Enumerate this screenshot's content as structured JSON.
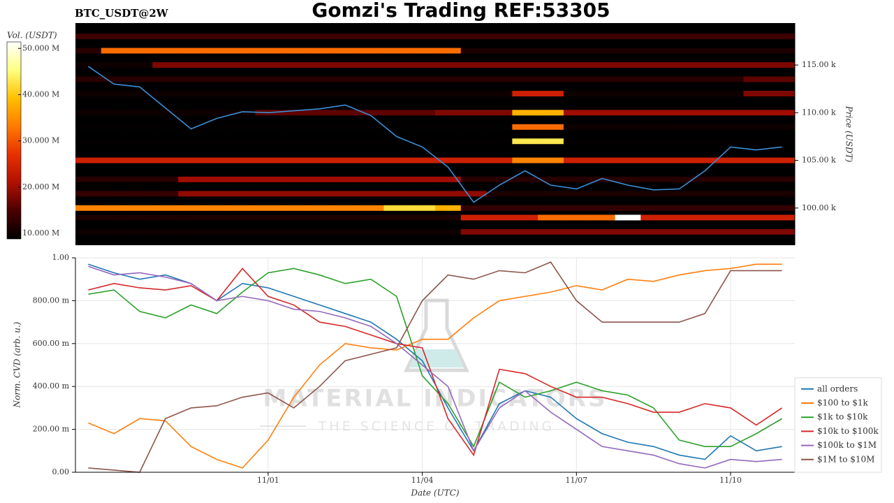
{
  "header": {
    "title": "Gomzi's Trading REF:53305"
  },
  "watermark": {
    "brand": "MATERIAL INDICATORS",
    "tagline": "THE SCIENCE OF TRADING"
  },
  "chart_data": [
    {
      "type": "heatmap",
      "title": "BTC_USDT@2W",
      "ylabel": "Price (USDT)",
      "ylim": [
        96100,
        119400
      ],
      "yticks": [
        {
          "value": 100000,
          "label": "100.00 k"
        },
        {
          "value": 105000,
          "label": "105.00 k"
        },
        {
          "value": 110000,
          "label": "110.00 k"
        },
        {
          "value": 115000,
          "label": "115.00 k"
        }
      ],
      "colorbar_label": "Vol. (USDT)",
      "clim": [
        8800000,
        51400000
      ],
      "cticks": [
        {
          "value": 10000000,
          "label": "10.000 M"
        },
        {
          "value": 20000000,
          "label": "20.000 M"
        },
        {
          "value": 30000000,
          "label": "30.000 M"
        },
        {
          "value": 40000000,
          "label": "40.000 M"
        },
        {
          "value": 50000000,
          "label": "50.000 M"
        }
      ],
      "colormap": [
        "#000000",
        "#4a0000",
        "#b01000",
        "#e83000",
        "#ff7a00",
        "#ffc000",
        "#ffff80",
        "#ffffff"
      ],
      "price_levels": [
        118000,
        116500,
        115000,
        113500,
        112000,
        110000,
        108500,
        107000,
        105000,
        103000,
        101500,
        100000,
        99000,
        97500
      ],
      "volume": [
        [
          14000000.0,
          14000000.0,
          14000000.0,
          14000000.0,
          14000000.0,
          14000000.0,
          14000000.0,
          14000000.0,
          14000000.0,
          14000000.0,
          14000000.0,
          14000000.0,
          14000000.0,
          14000000.0,
          14000000.0,
          14000000.0,
          14000000.0,
          14000000.0,
          14000000.0,
          14000000.0,
          14000000.0,
          14000000.0,
          14000000.0,
          14000000.0,
          14000000.0,
          14000000.0,
          14000000.0,
          14000000.0
        ],
        [
          12000000.0,
          32000000.0,
          32000000.0,
          32000000.0,
          32000000.0,
          32000000.0,
          32000000.0,
          32000000.0,
          32000000.0,
          32000000.0,
          32000000.0,
          32000000.0,
          32000000.0,
          32000000.0,
          32000000.0,
          11000000.0,
          11000000.0,
          11000000.0,
          11000000.0,
          11000000.0,
          11000000.0,
          11000000.0,
          11000000.0,
          11000000.0,
          11000000.0,
          11000000.0,
          11000000.0,
          11000000.0
        ],
        [
          10000000.0,
          10000000.0,
          10000000.0,
          18000000.0,
          18000000.0,
          18000000.0,
          18000000.0,
          18000000.0,
          18000000.0,
          18000000.0,
          18000000.0,
          18000000.0,
          18000000.0,
          18000000.0,
          18000000.0,
          18000000.0,
          18000000.0,
          18000000.0,
          18000000.0,
          18000000.0,
          18000000.0,
          18000000.0,
          18000000.0,
          18000000.0,
          18000000.0,
          18000000.0,
          18000000.0,
          18000000.0
        ],
        [
          12000000.0,
          12000000.0,
          12000000.0,
          12000000.0,
          12000000.0,
          12000000.0,
          12000000.0,
          12000000.0,
          12000000.0,
          12000000.0,
          12000000.0,
          12000000.0,
          12000000.0,
          12000000.0,
          12000000.0,
          12000000.0,
          12000000.0,
          12000000.0,
          12000000.0,
          12000000.0,
          12000000.0,
          12000000.0,
          12000000.0,
          12000000.0,
          12000000.0,
          12000000.0,
          16000000.0,
          16000000.0
        ],
        [
          10000000.0,
          10000000.0,
          10000000.0,
          10000000.0,
          10000000.0,
          10000000.0,
          10000000.0,
          10000000.0,
          10000000.0,
          10000000.0,
          10000000.0,
          10000000.0,
          10000000.0,
          10000000.0,
          10000000.0,
          10000000.0,
          10000000.0,
          24000000.0,
          24000000.0,
          10000000.0,
          10000000.0,
          10000000.0,
          10000000.0,
          10000000.0,
          10000000.0,
          10000000.0,
          18000000.0,
          18000000.0
        ],
        [
          10000000.0,
          10000000.0,
          10000000.0,
          10000000.0,
          10000000.0,
          10000000.0,
          10000000.0,
          16000000.0,
          16000000.0,
          16000000.0,
          16000000.0,
          16000000.0,
          16000000.0,
          16000000.0,
          18000000.0,
          18000000.0,
          18000000.0,
          38000000.0,
          38000000.0,
          20000000.0,
          20000000.0,
          20000000.0,
          20000000.0,
          20000000.0,
          20000000.0,
          20000000.0,
          20000000.0,
          20000000.0
        ],
        [
          9000000.0,
          9000000.0,
          9000000.0,
          9000000.0,
          9000000.0,
          9000000.0,
          9000000.0,
          9000000.0,
          9000000.0,
          9000000.0,
          9000000.0,
          9000000.0,
          9000000.0,
          9000000.0,
          9000000.0,
          9000000.0,
          9000000.0,
          32000000.0,
          32000000.0,
          10000000.0,
          10000000.0,
          10000000.0,
          10000000.0,
          10000000.0,
          10000000.0,
          10000000.0,
          10000000.0,
          10000000.0
        ],
        [
          9000000.0,
          9000000.0,
          9000000.0,
          9000000.0,
          9000000.0,
          9000000.0,
          9000000.0,
          9000000.0,
          9000000.0,
          9000000.0,
          9000000.0,
          9000000.0,
          9000000.0,
          9000000.0,
          9000000.0,
          9000000.0,
          9000000.0,
          43000000.0,
          43000000.0,
          9000000.0,
          9000000.0,
          9000000.0,
          9000000.0,
          9000000.0,
          9000000.0,
          9000000.0,
          9000000.0,
          9000000.0
        ],
        [
          24000000.0,
          24000000.0,
          24000000.0,
          24000000.0,
          24000000.0,
          24000000.0,
          24000000.0,
          24000000.0,
          24000000.0,
          24000000.0,
          24000000.0,
          24000000.0,
          24000000.0,
          24000000.0,
          24000000.0,
          24000000.0,
          24000000.0,
          34000000.0,
          34000000.0,
          24000000.0,
          24000000.0,
          24000000.0,
          24000000.0,
          24000000.0,
          24000000.0,
          24000000.0,
          24000000.0,
          24000000.0
        ],
        [
          12000000.0,
          12000000.0,
          12000000.0,
          12000000.0,
          20000000.0,
          20000000.0,
          20000000.0,
          20000000.0,
          20000000.0,
          20000000.0,
          20000000.0,
          20000000.0,
          20000000.0,
          20000000.0,
          20000000.0,
          12000000.0,
          12000000.0,
          12000000.0,
          12000000.0,
          12000000.0,
          12000000.0,
          12000000.0,
          12000000.0,
          12000000.0,
          12000000.0,
          12000000.0,
          12000000.0,
          12000000.0
        ],
        [
          13000000.0,
          13000000.0,
          13000000.0,
          13000000.0,
          19000000.0,
          19000000.0,
          19000000.0,
          19000000.0,
          19000000.0,
          19000000.0,
          19000000.0,
          19000000.0,
          19000000.0,
          19000000.0,
          19000000.0,
          19000000.0,
          11000000.0,
          11000000.0,
          11000000.0,
          11000000.0,
          11000000.0,
          11000000.0,
          11000000.0,
          11000000.0,
          11000000.0,
          11000000.0,
          11000000.0,
          11000000.0
        ],
        [
          34000000.0,
          34000000.0,
          34000000.0,
          34000000.0,
          34000000.0,
          34000000.0,
          34000000.0,
          34000000.0,
          34000000.0,
          34000000.0,
          34000000.0,
          34000000.0,
          42000000.0,
          42000000.0,
          38000000.0,
          13000000.0,
          13000000.0,
          13000000.0,
          13000000.0,
          13000000.0,
          13000000.0,
          13000000.0,
          13000000.0,
          13000000.0,
          13000000.0,
          13000000.0,
          13000000.0,
          13000000.0
        ],
        [
          11000000.0,
          11000000.0,
          11000000.0,
          11000000.0,
          11000000.0,
          11000000.0,
          11000000.0,
          11000000.0,
          11000000.0,
          11000000.0,
          11000000.0,
          11000000.0,
          11000000.0,
          11000000.0,
          11000000.0,
          24000000.0,
          24000000.0,
          24000000.0,
          32000000.0,
          32000000.0,
          32000000.0,
          52000000.0,
          24000000.0,
          24000000.0,
          24000000.0,
          24000000.0,
          24000000.0,
          24000000.0
        ],
        [
          10000000.0,
          10000000.0,
          10000000.0,
          10000000.0,
          10000000.0,
          10000000.0,
          10000000.0,
          10000000.0,
          10000000.0,
          10000000.0,
          10000000.0,
          10000000.0,
          10000000.0,
          10000000.0,
          10000000.0,
          18000000.0,
          18000000.0,
          18000000.0,
          18000000.0,
          18000000.0,
          18000000.0,
          18000000.0,
          18000000.0,
          18000000.0,
          18000000.0,
          18000000.0,
          18000000.0,
          18000000.0
        ]
      ],
      "series": [
        {
          "color": "#3b8fd6",
          "values": [
            114850,
            113000,
            112700,
            110500,
            108300,
            109400,
            110100,
            110000,
            110200,
            110400,
            110800,
            109700,
            107500,
            106400,
            104300,
            100600,
            102400,
            103900,
            102400,
            102000,
            103100,
            102400,
            101900,
            102000,
            103900,
            106400,
            106100,
            106400
          ]
        }
      ]
    },
    {
      "type": "line",
      "xlabel": "Date (UTC)",
      "ylabel": "Norm. CVD (arb. u.)",
      "x": [
        null,
        null,
        null,
        null,
        null,
        null,
        null,
        "11/01",
        null,
        null,
        null,
        null,
        null,
        "11/04",
        null,
        null,
        null,
        null,
        null,
        "11/07",
        null,
        null,
        null,
        null,
        null,
        "11/10",
        null,
        null
      ],
      "ylim": [
        0,
        1
      ],
      "yticks": [
        {
          "value": 0,
          "label": "0.00"
        },
        {
          "value": 0.2,
          "label": "200.00 m"
        },
        {
          "value": 0.4,
          "label": "400.00 m"
        },
        {
          "value": 0.6,
          "label": "600.00 m"
        },
        {
          "value": 0.8,
          "label": "800.00 m"
        },
        {
          "value": 1,
          "label": "1.00"
        }
      ],
      "grid": true,
      "legend": "right",
      "series": [
        {
          "name": "all orders",
          "color": "#1f77b4",
          "values": [
            0.97,
            0.93,
            0.9,
            0.92,
            0.88,
            0.8,
            0.88,
            0.86,
            0.82,
            0.78,
            0.74,
            0.7,
            0.62,
            0.52,
            0.3,
            0.1,
            0.32,
            0.38,
            0.35,
            0.25,
            0.18,
            0.14,
            0.12,
            0.08,
            0.06,
            0.17,
            0.1,
            0.12
          ]
        },
        {
          "name": "$100 to $1k",
          "color": "#ff7f0e",
          "values": [
            0.23,
            0.18,
            0.25,
            0.24,
            0.12,
            0.06,
            0.02,
            0.15,
            0.35,
            0.5,
            0.6,
            0.58,
            0.57,
            0.62,
            0.62,
            0.72,
            0.8,
            0.82,
            0.84,
            0.87,
            0.85,
            0.9,
            0.89,
            0.92,
            0.94,
            0.95,
            0.97,
            0.97
          ]
        },
        {
          "name": "$1k to $10k",
          "color": "#2ca02c",
          "values": [
            0.83,
            0.85,
            0.75,
            0.72,
            0.78,
            0.74,
            0.84,
            0.93,
            0.95,
            0.92,
            0.88,
            0.9,
            0.82,
            0.45,
            0.32,
            0.12,
            0.42,
            0.35,
            0.38,
            0.42,
            0.38,
            0.36,
            0.3,
            0.15,
            0.12,
            0.12,
            0.18,
            0.25
          ]
        },
        {
          "name": "$10k to $100k",
          "color": "#d62728",
          "values": [
            0.85,
            0.88,
            0.86,
            0.85,
            0.87,
            0.8,
            0.95,
            0.82,
            0.78,
            0.7,
            0.68,
            0.64,
            0.6,
            0.58,
            0.25,
            0.08,
            0.48,
            0.46,
            0.4,
            0.35,
            0.35,
            0.32,
            0.28,
            0.28,
            0.32,
            0.3,
            0.22,
            0.3
          ]
        },
        {
          "name": "$100k to $1M",
          "color": "#9467bd",
          "values": [
            0.96,
            0.92,
            0.93,
            0.91,
            0.88,
            0.8,
            0.82,
            0.8,
            0.76,
            0.75,
            0.72,
            0.68,
            0.6,
            0.5,
            0.4,
            0.1,
            0.3,
            0.38,
            0.28,
            0.2,
            0.12,
            0.1,
            0.08,
            0.04,
            0.02,
            0.06,
            0.05,
            0.06
          ]
        },
        {
          "name": "$1M to $10M",
          "color": "#8c564b",
          "values": [
            0.02,
            0.01,
            0.0,
            0.25,
            0.3,
            0.31,
            0.35,
            0.37,
            0.3,
            0.4,
            0.52,
            0.55,
            0.58,
            0.8,
            0.92,
            0.9,
            0.94,
            0.93,
            0.98,
            0.8,
            0.7,
            0.7,
            0.7,
            0.7,
            0.74,
            0.94,
            0.94,
            0.94
          ]
        }
      ]
    }
  ]
}
